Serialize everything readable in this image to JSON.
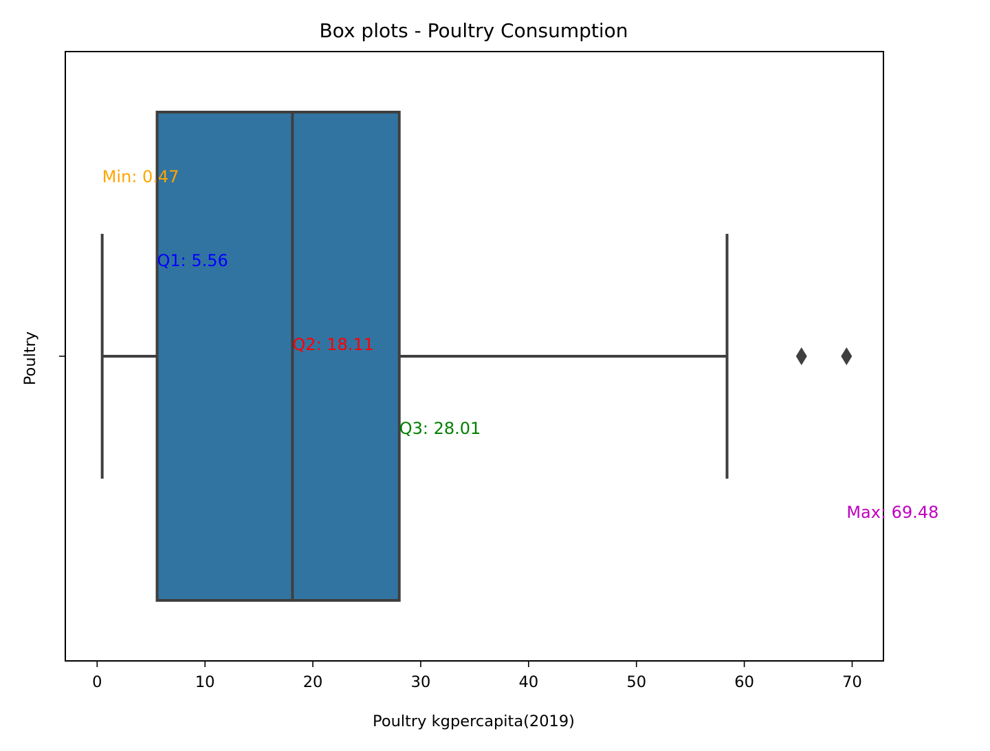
{
  "chart_data": {
    "type": "box",
    "title": "Box plots - Poultry Consumption",
    "xlabel": "Poultry kgpercapita(2019)",
    "ylabel": "Poultry",
    "xlim": [
      -2.95,
      72.9
    ],
    "x_ticks": [
      0,
      10,
      20,
      30,
      40,
      50,
      60,
      70
    ],
    "orientation": "horizontal",
    "box_color": "#3274a1",
    "edge_color": "#3f3f3f",
    "box": {
      "q1": 5.56,
      "median": 18.11,
      "q3": 28.01,
      "whisker_low": 0.47,
      "whisker_high": 58.4
    },
    "outliers": [
      65.3,
      69.48
    ],
    "annotations": [
      {
        "text": "Min: 0.47",
        "x": 0.47,
        "color": "#ffa500",
        "level": 2
      },
      {
        "text": "Q1: 5.56",
        "x": 5.56,
        "color": "#0000ff",
        "level": 1
      },
      {
        "text": "Q2: 18.11",
        "x": 18.11,
        "color": "#ff0000",
        "level": 0
      },
      {
        "text": "Q3: 28.01",
        "x": 28.01,
        "color": "#008000",
        "level": -1
      },
      {
        "text": "Max: 69.48",
        "x": 69.48,
        "color": "#bf00bf",
        "level": -2
      }
    ]
  }
}
